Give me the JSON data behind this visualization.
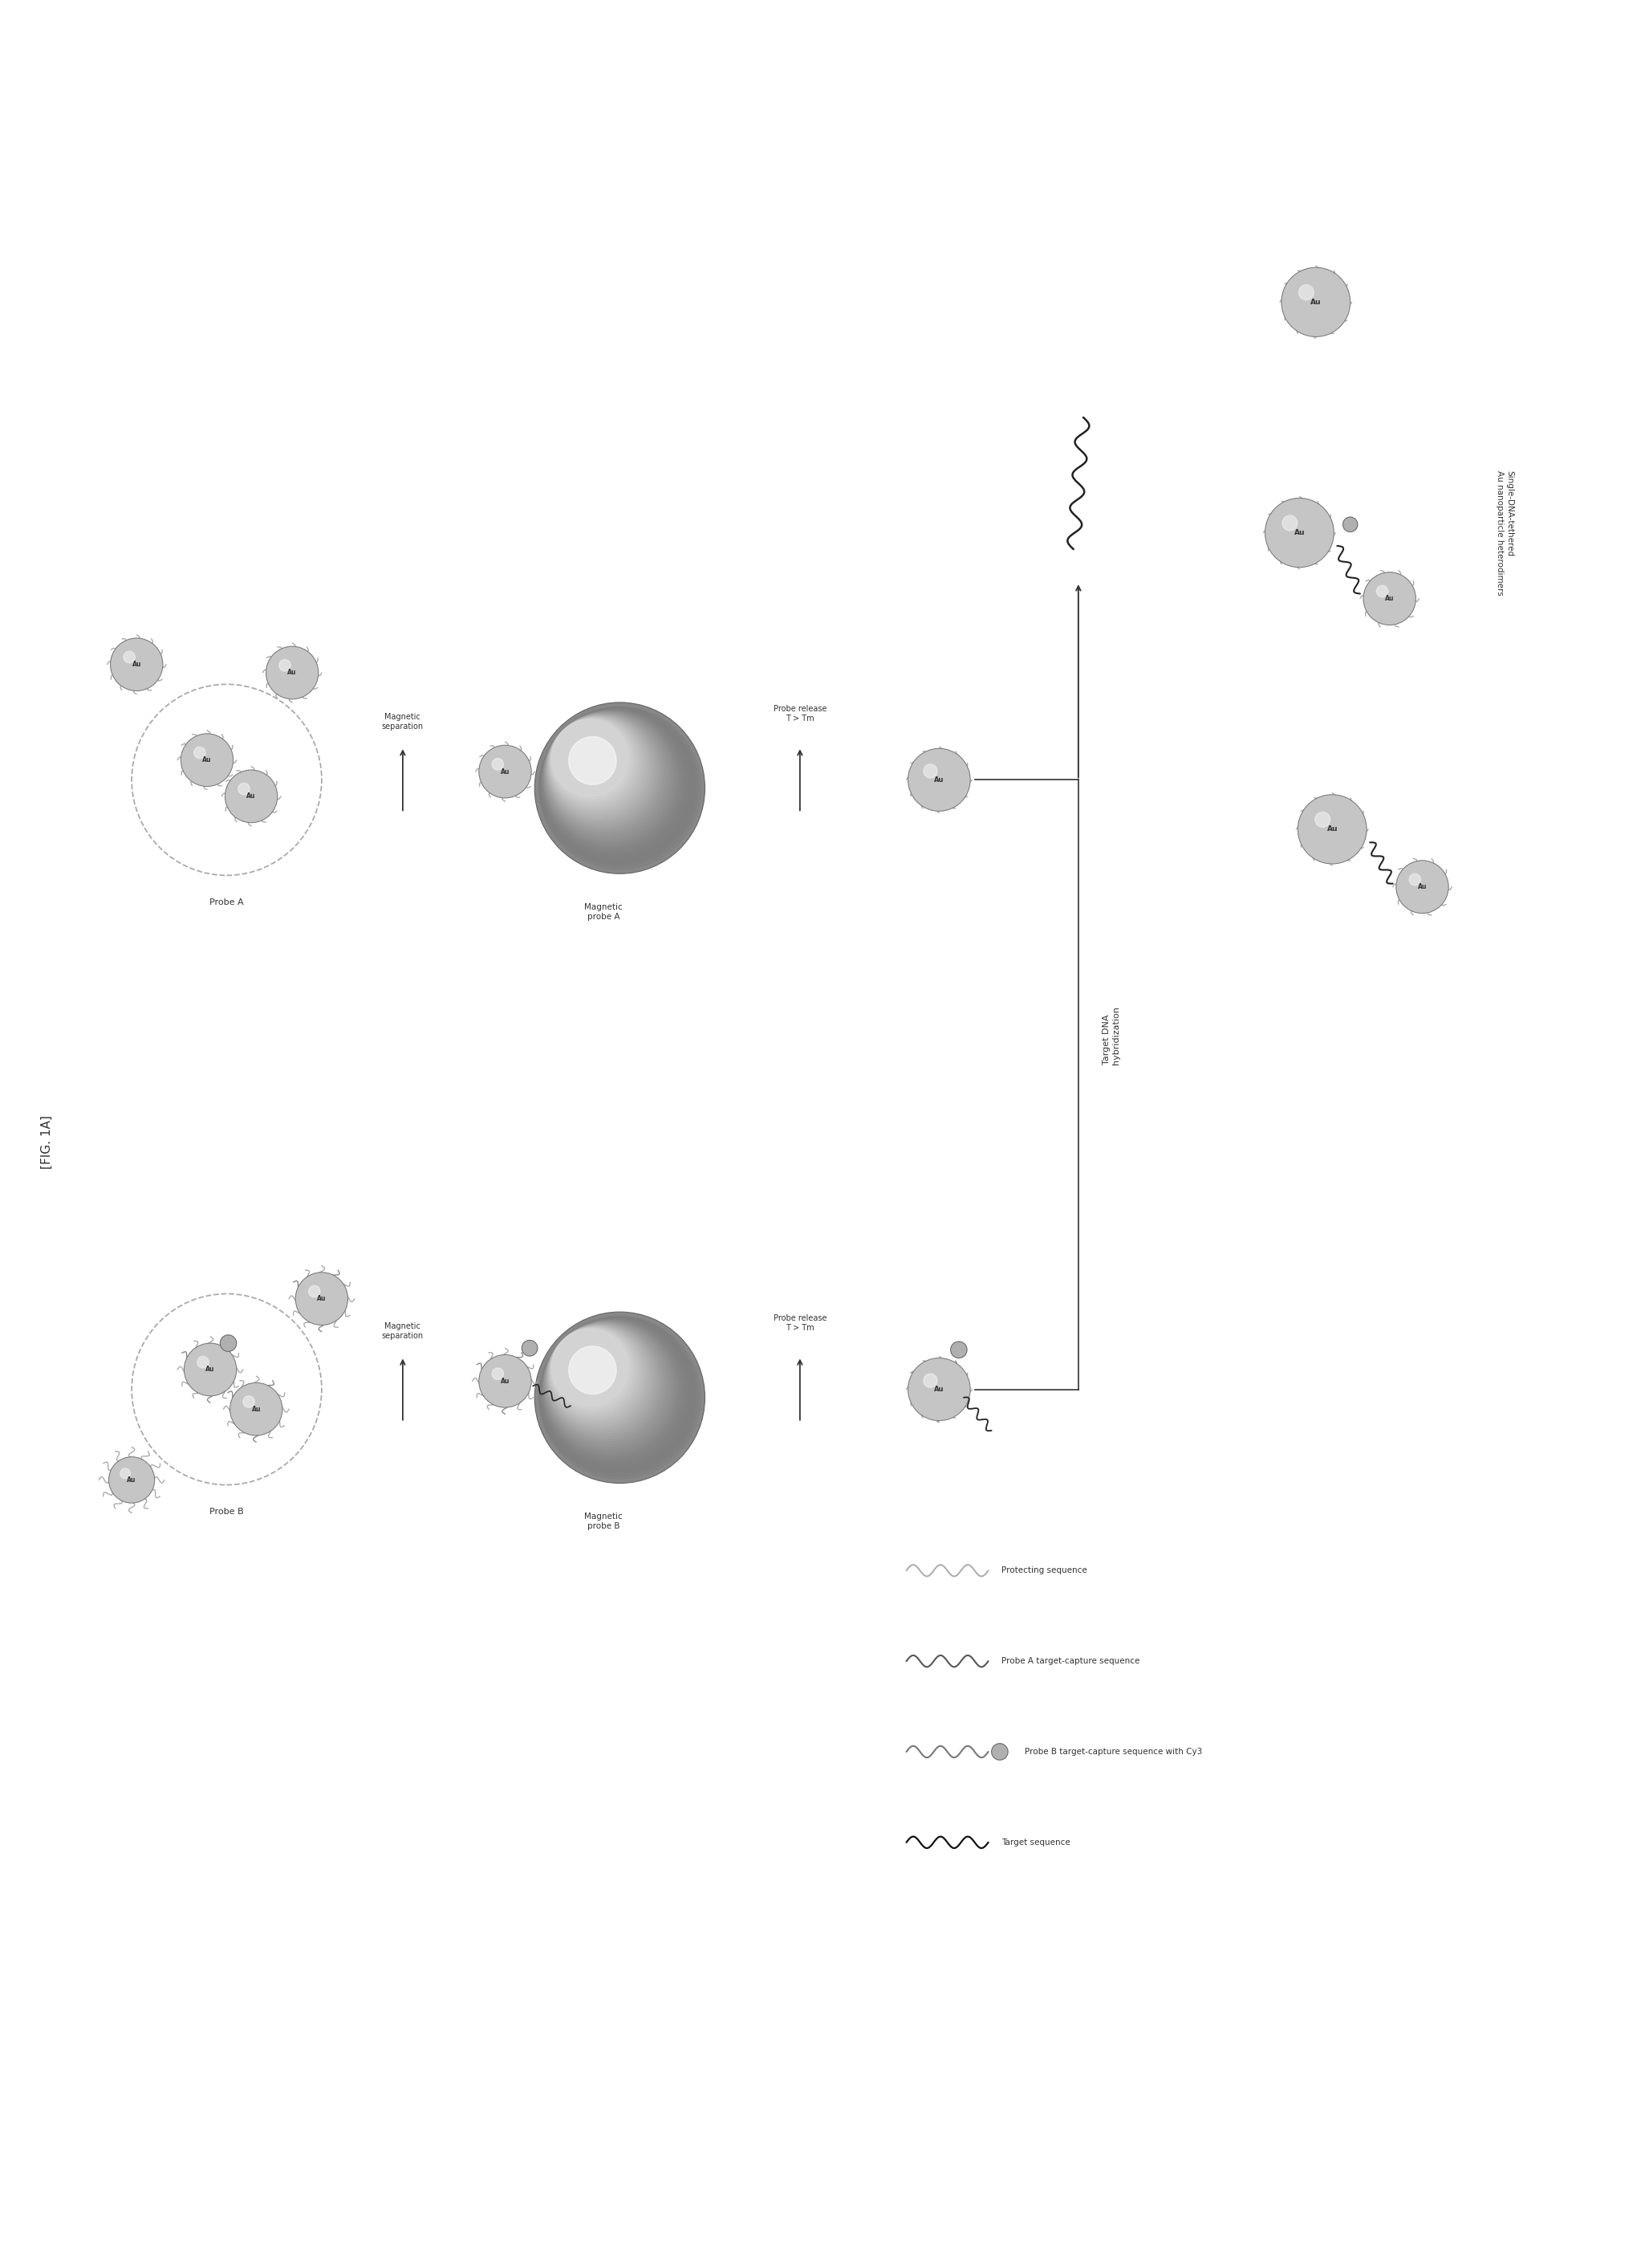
{
  "fig_label": "[FIG. 1A]",
  "bg_color": "#ffffff",
  "fig_width": 20.55,
  "fig_height": 28.25,
  "legend_items": [
    {
      "label": "Protecting sequence",
      "color": "#aaaaaa"
    },
    {
      "label": "Probe A target-capture sequence",
      "color": "#555555"
    },
    {
      "label": "Probe B target-capture sequence with Cy3",
      "color": "#777777"
    },
    {
      "label": "Target sequence",
      "color": "#111111"
    }
  ],
  "text_labels": {
    "fig_label": "[FIG. 1A]",
    "probe_a": "Probe A",
    "probe_b": "Probe B",
    "magnetic_probe_a": "Magnetic\nprobe A",
    "magnetic_probe_b": "Magnetic\nprobe B",
    "probe_release_a": "Probe release\nT > Tm",
    "probe_release_b": "Probe release\nT > Tm",
    "magnetic_separation_a": "Magnetic\nseparation",
    "magnetic_separation_b": "Magnetic\nseparation",
    "target_dna": "Target DNA\nhybridization",
    "single_dna": "Single-DNA-tethered\nAu nanoparticle heterodimers"
  }
}
